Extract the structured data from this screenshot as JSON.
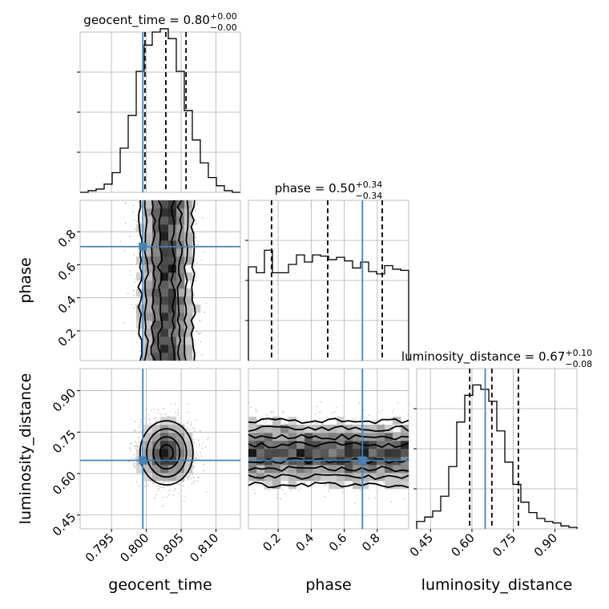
{
  "chart_data": {
    "type": "corner",
    "parameters": [
      "geocent_time",
      "phase",
      "luminosity_distance"
    ],
    "titles": [
      {
        "param": "geocent_time",
        "text": "geocent_time = 0.80",
        "sup": "+0.00",
        "sub": "−0.00"
      },
      {
        "param": "phase",
        "text": "phase = 0.50",
        "sup": "+0.34",
        "sub": "−0.34"
      },
      {
        "param": "luminosity_distance",
        "text": "luminosity_distance = 0.67",
        "sup": "+0.10",
        "sub": "−0.08"
      }
    ],
    "ranges": {
      "geocent_time": [
        0.7905,
        0.8135
      ],
      "phase": [
        0.02,
        0.99
      ],
      "luminosity_distance": [
        0.4,
        0.98
      ]
    },
    "ticks": {
      "geocent_time": [
        "0.795",
        "0.800",
        "0.805",
        "0.810"
      ],
      "phase": [
        "0.2",
        "0.4",
        "0.6",
        "0.8"
      ],
      "luminosity_distance": [
        "0.45",
        "0.60",
        "0.75",
        "0.90"
      ]
    },
    "truths": {
      "geocent_time": 0.7995,
      "phase": 0.71,
      "luminosity_distance": 0.648
    },
    "quantiles": {
      "geocent_time": [
        0.7998,
        0.8028,
        0.8057
      ],
      "phase": [
        0.16,
        0.5,
        0.83
      ],
      "luminosity_distance": [
        0.592,
        0.672,
        0.768
      ]
    },
    "histograms": {
      "geocent_time": [
        0,
        0.01,
        0.02,
        0.05,
        0.12,
        0.27,
        0.47,
        0.74,
        0.9,
        0.98,
        1.0,
        0.94,
        0.74,
        0.5,
        0.32,
        0.18,
        0.09,
        0.04,
        0.01,
        0
      ],
      "phase": [
        0.79,
        0.74,
        0.93,
        0.74,
        0.74,
        0.81,
        0.89,
        0.83,
        0.89,
        0.88,
        0.85,
        0.87,
        0.84,
        0.78,
        0.83,
        0.75,
        0.73,
        0.8,
        0.77,
        0.76
      ],
      "luminosity_distance": [
        0.05,
        0.08,
        0.12,
        0.22,
        0.42,
        0.72,
        0.9,
        0.97,
        0.94,
        0.86,
        0.66,
        0.45,
        0.3,
        0.18,
        0.11,
        0.07,
        0.05,
        0.04,
        0.02,
        0.01
      ]
    },
    "hist_max": {
      "geocent_time": 0.98,
      "phase": 1.35,
      "luminosity_distance": 1.08
    },
    "grid": true
  }
}
